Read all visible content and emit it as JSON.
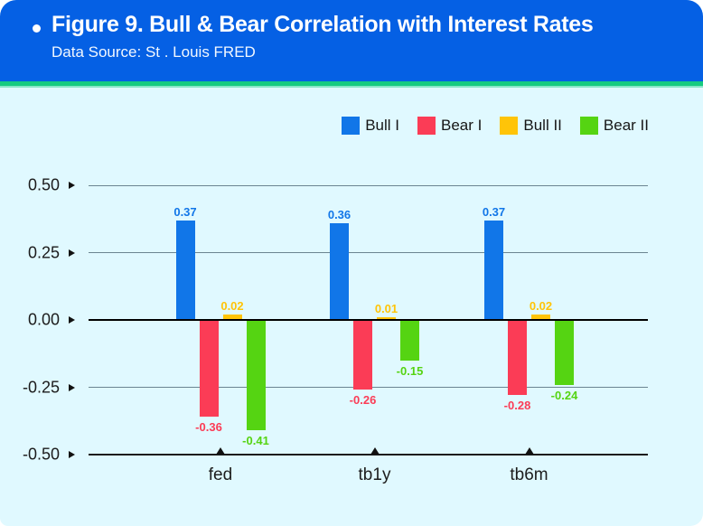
{
  "header": {
    "title": "Figure 9. Bull & Bear Correlation with Interest Rates",
    "subtitle": "Data Source: St . Louis FRED"
  },
  "colors": {
    "header_bg": "#0560E4",
    "divider_green": "#17CB80",
    "divider_light": "#8BE6C9",
    "card_bg": "#E0F9FF",
    "grid_line": "#6B8591",
    "zero_line": "#000000",
    "base_line": "#1C1C1C",
    "tick_text": "#1B1B1B"
  },
  "chart_data": {
    "type": "bar",
    "title": "Figure 9. Bull & Bear Correlation with Interest Rates",
    "subtitle": "Data Source: St . Louis FRED",
    "categories": [
      "fed",
      "tb1y",
      "tb6m"
    ],
    "series": [
      {
        "name": "Bull I",
        "color": "#1176E8",
        "values": [
          0.37,
          0.36,
          0.37
        ]
      },
      {
        "name": "Bear I",
        "color": "#FB3C56",
        "values": [
          -0.36,
          -0.26,
          -0.28
        ]
      },
      {
        "name": "Bull II",
        "color": "#FFC408",
        "values": [
          0.02,
          0.01,
          0.02
        ]
      },
      {
        "name": "Bear II",
        "color": "#55D412",
        "values": [
          -0.41,
          -0.15,
          -0.24
        ]
      }
    ],
    "xlabel": "",
    "ylabel": "",
    "ylim": [
      -0.5,
      0.5
    ],
    "yticks": [
      0.5,
      0.25,
      0,
      -0.25,
      -0.5
    ],
    "ytick_labels": [
      "0.50",
      "0.25",
      "0.00",
      "-0.25",
      "-0.50"
    ],
    "grid": true,
    "data_labels": true,
    "legend_position": "top-right"
  }
}
